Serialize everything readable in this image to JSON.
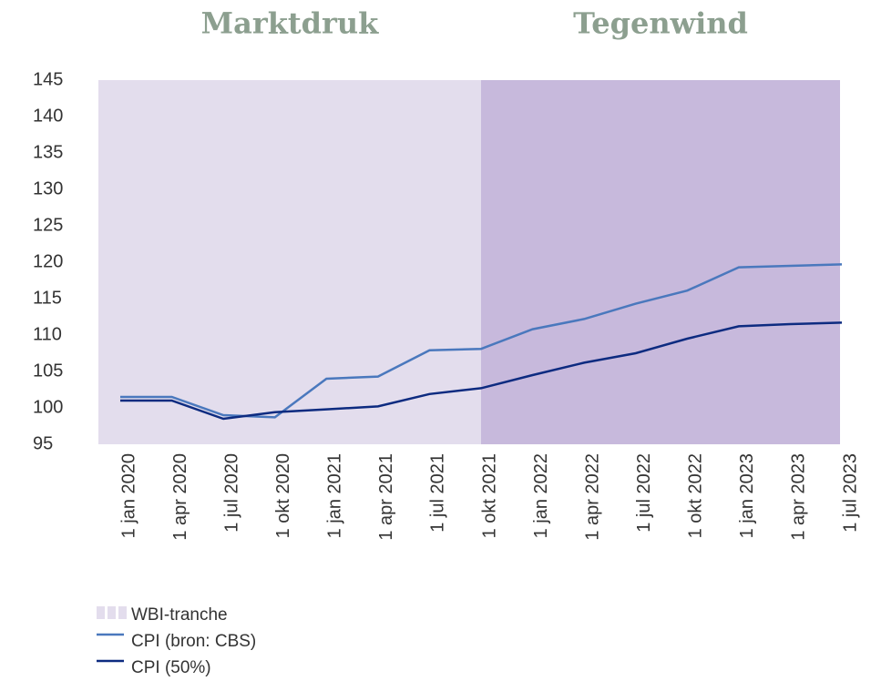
{
  "chart_data": {
    "type": "line",
    "bands": [
      {
        "label": "Marktdruk",
        "from": "1 jan 2020",
        "to": "1 okt 2021",
        "color": "#e3dded"
      },
      {
        "label": "Tegenwind",
        "from": "1 okt 2021",
        "to": "1 jul 2023",
        "color": "#c7b9dc"
      }
    ],
    "band_legend": "WBI-tranche",
    "categories": [
      "1 jan 2020",
      "1 apr 2020",
      "1 jul 2020",
      "1 okt 2020",
      "1 jan 2021",
      "1 apr 2021",
      "1 jul 2021",
      "1 okt 2021",
      "1 jan 2022",
      "1 apr 2022",
      "1 jul 2022",
      "1 okt 2022",
      "1 jan 2023",
      "1 apr 2023",
      "1 jul 2023"
    ],
    "series": [
      {
        "name": "CPI (bron: CBS)",
        "color": "#4a78bd",
        "values": [
          101.5,
          101.5,
          99,
          98.7,
          104,
          104.3,
          107.9,
          108.1,
          110.8,
          112.2,
          114.3,
          116.1,
          119.3,
          119.5,
          119.7
        ]
      },
      {
        "name": "CPI (50%)",
        "color": "#0d2b80",
        "values": [
          101,
          101,
          98.5,
          99.4,
          99.8,
          100.2,
          101.9,
          102.7,
          104.5,
          106.2,
          107.5,
          109.5,
          111.2,
          111.5,
          111.7
        ]
      }
    ],
    "ylim": [
      95,
      145
    ],
    "yticks": [
      95,
      100,
      105,
      110,
      115,
      120,
      125,
      130,
      135,
      140,
      145
    ]
  }
}
